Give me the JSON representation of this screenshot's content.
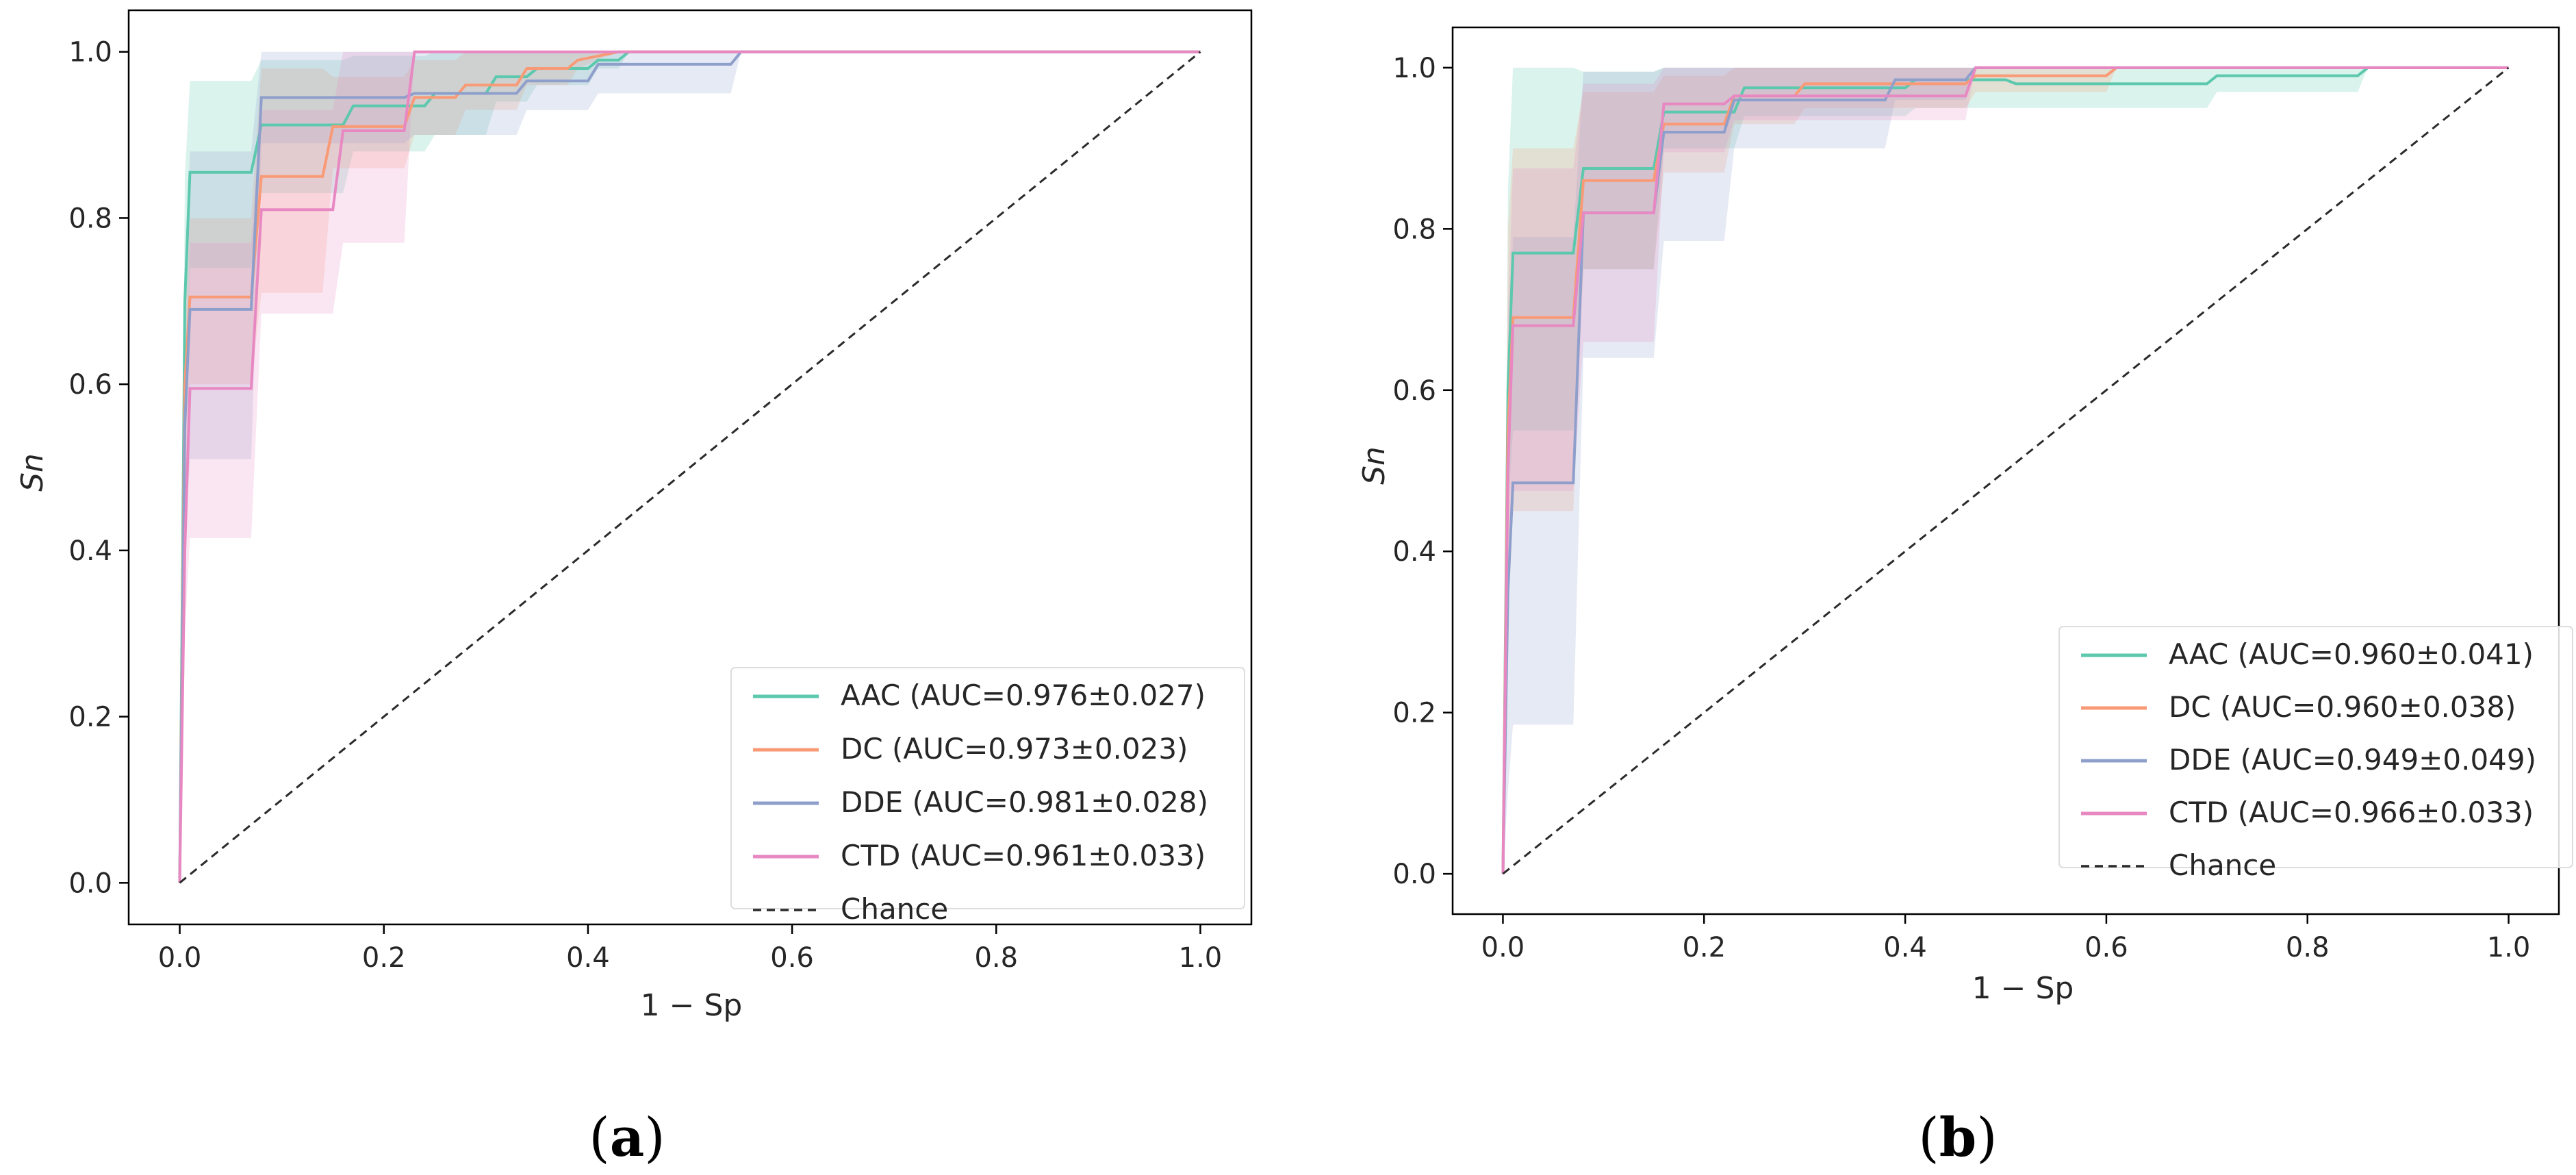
{
  "chart_data": [
    {
      "type": "line",
      "panel_label": "(a)",
      "panel_label_parts": {
        "open": "(",
        "letter": "a",
        "close": ")"
      },
      "xlabel": "1 − Sp",
      "ylabel": "Sn",
      "xlim": [
        -0.05,
        1.05
      ],
      "ylim": [
        -0.05,
        1.05
      ],
      "xticks": [
        "0.0",
        "0.2",
        "0.4",
        "0.6",
        "0.8",
        "1.0"
      ],
      "xtick_values": [
        0.0,
        0.2,
        0.4,
        0.6,
        0.8,
        1.0
      ],
      "yticks": [
        "0.0",
        "0.2",
        "0.4",
        "0.6",
        "0.8",
        "1.0"
      ],
      "ytick_values": [
        0.0,
        0.2,
        0.4,
        0.6,
        0.8,
        1.0
      ],
      "legend_position": "lower-right",
      "series": [
        {
          "name": "AAC (AUC=0.976±0.027)",
          "color": "#5cc8ad",
          "x": [
            0,
            0.005,
            0.01,
            0.07,
            0.08,
            0.16,
            0.17,
            0.24,
            0.25,
            0.3,
            0.31,
            0.34,
            0.35,
            0.4,
            0.41,
            0.43,
            0.44,
            1.0
          ],
          "y": [
            0,
            0.7,
            0.855,
            0.855,
            0.912,
            0.912,
            0.935,
            0.935,
            0.95,
            0.95,
            0.97,
            0.97,
            0.98,
            0.98,
            0.99,
            0.99,
            1.0,
            1.0
          ],
          "lower": [
            0,
            0.55,
            0.74,
            0.74,
            0.83,
            0.83,
            0.88,
            0.88,
            0.9,
            0.9,
            0.94,
            0.94,
            0.96,
            0.96,
            0.98,
            0.98,
            1.0,
            1.0
          ],
          "upper": [
            0,
            0.85,
            0.965,
            0.965,
            0.99,
            0.99,
            0.995,
            0.995,
            1.0,
            1.0,
            1.0,
            1.0,
            1.0,
            1.0,
            1.0,
            1.0,
            1.0,
            1.0
          ]
        },
        {
          "name": "DC (AUC=0.973±0.023)",
          "color": "#f99a76",
          "x": [
            0,
            0.005,
            0.01,
            0.07,
            0.08,
            0.14,
            0.15,
            0.22,
            0.23,
            0.27,
            0.28,
            0.33,
            0.34,
            0.38,
            0.39,
            0.43,
            1.0
          ],
          "y": [
            0,
            0.6,
            0.705,
            0.705,
            0.85,
            0.85,
            0.91,
            0.91,
            0.945,
            0.945,
            0.96,
            0.96,
            0.98,
            0.98,
            0.99,
            1.0,
            1.0
          ],
          "lower": [
            0,
            0.45,
            0.6,
            0.6,
            0.71,
            0.71,
            0.86,
            0.86,
            0.9,
            0.9,
            0.93,
            0.93,
            0.96,
            0.96,
            0.98,
            1.0,
            1.0
          ],
          "upper": [
            0,
            0.72,
            0.8,
            0.8,
            0.98,
            0.98,
            0.97,
            0.97,
            0.99,
            0.99,
            1.0,
            1.0,
            1.0,
            1.0,
            1.0,
            1.0,
            1.0
          ]
        },
        {
          "name": "DDE (AUC=0.981±0.028)",
          "color": "#8f9fcb",
          "x": [
            0,
            0.005,
            0.01,
            0.07,
            0.08,
            0.22,
            0.23,
            0.33,
            0.34,
            0.4,
            0.41,
            0.54,
            0.55,
            1.0
          ],
          "y": [
            0,
            0.55,
            0.69,
            0.69,
            0.945,
            0.945,
            0.95,
            0.95,
            0.965,
            0.965,
            0.985,
            0.985,
            1.0,
            1.0
          ],
          "lower": [
            0,
            0.4,
            0.51,
            0.51,
            0.89,
            0.89,
            0.9,
            0.9,
            0.93,
            0.93,
            0.95,
            0.95,
            1.0,
            1.0
          ],
          "upper": [
            0,
            0.72,
            0.88,
            0.88,
            1.0,
            1.0,
            1.0,
            1.0,
            1.0,
            1.0,
            1.0,
            1.0,
            1.0,
            1.0
          ]
        },
        {
          "name": "CTD (AUC=0.961±0.033)",
          "color": "#e888c2",
          "x": [
            0,
            0.005,
            0.01,
            0.07,
            0.08,
            0.15,
            0.16,
            0.22,
            0.23,
            1.0
          ],
          "y": [
            0,
            0.4,
            0.595,
            0.595,
            0.81,
            0.81,
            0.905,
            0.905,
            1.0,
            1.0
          ],
          "lower": [
            0,
            0.3,
            0.415,
            0.415,
            0.685,
            0.685,
            0.77,
            0.77,
            1.0,
            1.0
          ],
          "upper": [
            0,
            0.55,
            0.77,
            0.77,
            0.93,
            0.93,
            1.0,
            1.0,
            1.0,
            1.0
          ]
        },
        {
          "name": "Chance",
          "color": "#2b2b2b",
          "dashed": true,
          "x": [
            0,
            1
          ],
          "y": [
            0,
            1
          ]
        }
      ]
    },
    {
      "type": "line",
      "panel_label": "(b)",
      "panel_label_parts": {
        "open": "(",
        "letter": "b",
        "close": ")"
      },
      "xlabel": "1 − Sp",
      "ylabel": "Sn",
      "xlim": [
        -0.05,
        1.05
      ],
      "ylim": [
        -0.05,
        1.05
      ],
      "xticks": [
        "0.0",
        "0.2",
        "0.4",
        "0.6",
        "0.8",
        "1.0"
      ],
      "xtick_values": [
        0.0,
        0.2,
        0.4,
        0.6,
        0.8,
        1.0
      ],
      "yticks": [
        "0.0",
        "0.2",
        "0.4",
        "0.6",
        "0.8",
        "1.0"
      ],
      "ytick_values": [
        0.0,
        0.2,
        0.4,
        0.6,
        0.8,
        1.0
      ],
      "legend_position": "lower-right",
      "series": [
        {
          "name": "AAC (AUC=0.960±0.041)",
          "color": "#5cc8ad",
          "x": [
            0,
            0.005,
            0.01,
            0.07,
            0.08,
            0.15,
            0.16,
            0.23,
            0.24,
            0.4,
            0.41,
            0.5,
            0.51,
            0.7,
            0.71,
            0.85,
            0.86,
            1.0
          ],
          "y": [
            0,
            0.6,
            0.77,
            0.77,
            0.875,
            0.875,
            0.945,
            0.945,
            0.975,
            0.975,
            0.985,
            0.985,
            0.98,
            0.98,
            0.99,
            0.99,
            1.0,
            1.0
          ],
          "lower": [
            0,
            0.45,
            0.55,
            0.55,
            0.75,
            0.75,
            0.9,
            0.9,
            0.94,
            0.94,
            0.95,
            0.95,
            0.95,
            0.95,
            0.97,
            0.97,
            1.0,
            1.0
          ],
          "upper": [
            0,
            0.85,
            1.0,
            1.0,
            0.995,
            0.995,
            1.0,
            1.0,
            1.0,
            1.0,
            1.0,
            1.0,
            1.0,
            1.0,
            1.0,
            1.0,
            1.0,
            1.0
          ]
        },
        {
          "name": "DC (AUC=0.960±0.038)",
          "color": "#f99a76",
          "x": [
            0,
            0.005,
            0.01,
            0.07,
            0.08,
            0.15,
            0.16,
            0.22,
            0.23,
            0.29,
            0.3,
            0.46,
            0.47,
            0.6,
            0.61,
            1.0
          ],
          "y": [
            0,
            0.55,
            0.69,
            0.69,
            0.86,
            0.86,
            0.93,
            0.93,
            0.965,
            0.965,
            0.98,
            0.98,
            0.99,
            0.99,
            1.0,
            1.0
          ],
          "lower": [
            0,
            0.4,
            0.45,
            0.45,
            0.75,
            0.75,
            0.87,
            0.87,
            0.93,
            0.93,
            0.95,
            0.95,
            0.97,
            0.97,
            1.0,
            1.0
          ],
          "upper": [
            0,
            0.8,
            0.9,
            0.9,
            0.97,
            0.97,
            0.99,
            0.99,
            1.0,
            1.0,
            1.0,
            1.0,
            1.0,
            1.0,
            1.0,
            1.0
          ]
        },
        {
          "name": "DDE (AUC=0.949±0.049)",
          "color": "#8f9fcb",
          "x": [
            0,
            0.005,
            0.01,
            0.07,
            0.08,
            0.15,
            0.16,
            0.22,
            0.23,
            0.38,
            0.39,
            0.46,
            0.47,
            1.0
          ],
          "y": [
            0,
            0.35,
            0.485,
            0.485,
            0.82,
            0.82,
            0.92,
            0.92,
            0.96,
            0.96,
            0.985,
            0.985,
            1.0,
            1.0
          ],
          "lower": [
            0,
            0.1,
            0.185,
            0.185,
            0.64,
            0.64,
            0.785,
            0.785,
            0.9,
            0.9,
            0.96,
            0.96,
            1.0,
            1.0
          ],
          "upper": [
            0,
            0.6,
            0.79,
            0.79,
            0.995,
            0.995,
            1.0,
            1.0,
            1.0,
            1.0,
            1.0,
            1.0,
            1.0,
            1.0
          ]
        },
        {
          "name": "CTD (AUC=0.966±0.033)",
          "color": "#e888c2",
          "x": [
            0,
            0.005,
            0.01,
            0.07,
            0.08,
            0.15,
            0.16,
            0.22,
            0.23,
            0.46,
            0.47,
            1.0
          ],
          "y": [
            0,
            0.5,
            0.68,
            0.68,
            0.82,
            0.82,
            0.955,
            0.955,
            0.965,
            0.965,
            1.0,
            1.0
          ],
          "lower": [
            0,
            0.4,
            0.475,
            0.475,
            0.66,
            0.66,
            0.895,
            0.895,
            0.935,
            0.935,
            1.0,
            1.0
          ],
          "upper": [
            0,
            0.7,
            0.875,
            0.875,
            0.98,
            0.98,
            1.0,
            1.0,
            1.0,
            1.0,
            1.0,
            1.0
          ]
        },
        {
          "name": "Chance",
          "color": "#2b2b2b",
          "dashed": true,
          "x": [
            0,
            1
          ],
          "y": [
            0,
            1
          ]
        }
      ]
    }
  ]
}
